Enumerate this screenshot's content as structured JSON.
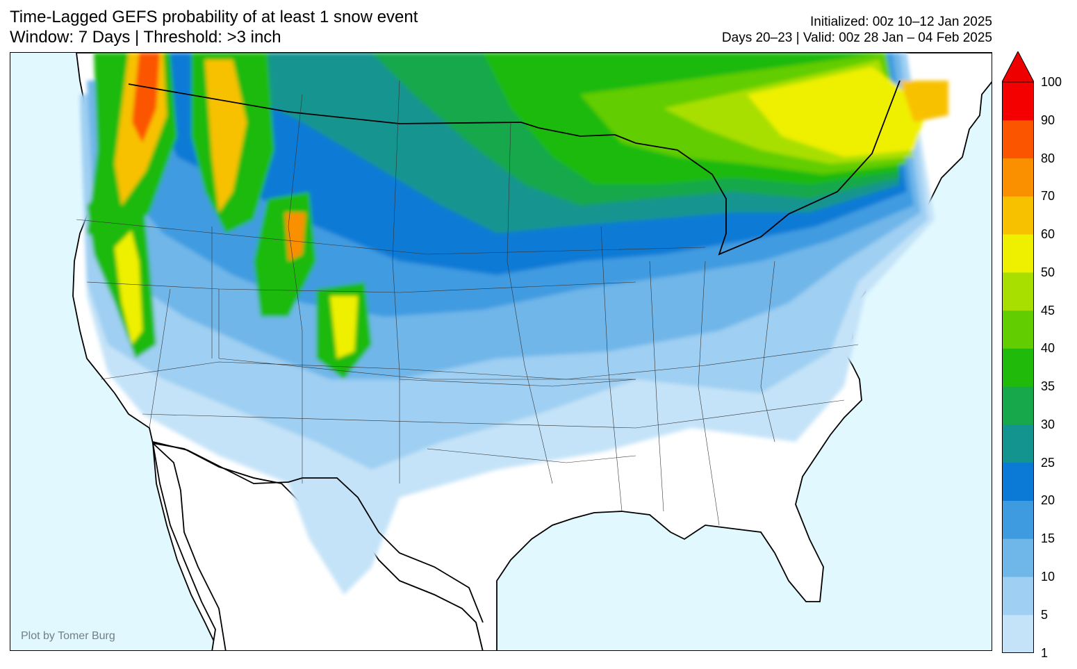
{
  "title": {
    "line1": "Time-Lagged GEFS probability of at least 1 snow event",
    "line2": "Window: 7 Days | Threshold: >3 inch"
  },
  "info": {
    "initialized": "Initialized: 00z 10–12 Jan 2025",
    "valid": "Days 20–23 | Valid: 00z 28 Jan – 04 Feb 2025"
  },
  "credit": "Plot by Tomer Burg",
  "colorbar": {
    "labels": [
      "1",
      "5",
      "10",
      "15",
      "20",
      "25",
      "30",
      "35",
      "40",
      "45",
      "50",
      "60",
      "70",
      "80",
      "90",
      "100"
    ],
    "colors": [
      "#c4e3f8",
      "#9fcff2",
      "#6fb6e9",
      "#3f9be0",
      "#0b7ad6",
      "#13948f",
      "#17a84b",
      "#1fba0a",
      "#62cd00",
      "#a9df00",
      "#eff000",
      "#f8c100",
      "#fa8f00",
      "#fb5500",
      "#f50000"
    ],
    "extend_color": "#ee0000"
  },
  "map": {
    "ocean_color": "#e1f8ff",
    "land_color": "#ffffff"
  }
}
